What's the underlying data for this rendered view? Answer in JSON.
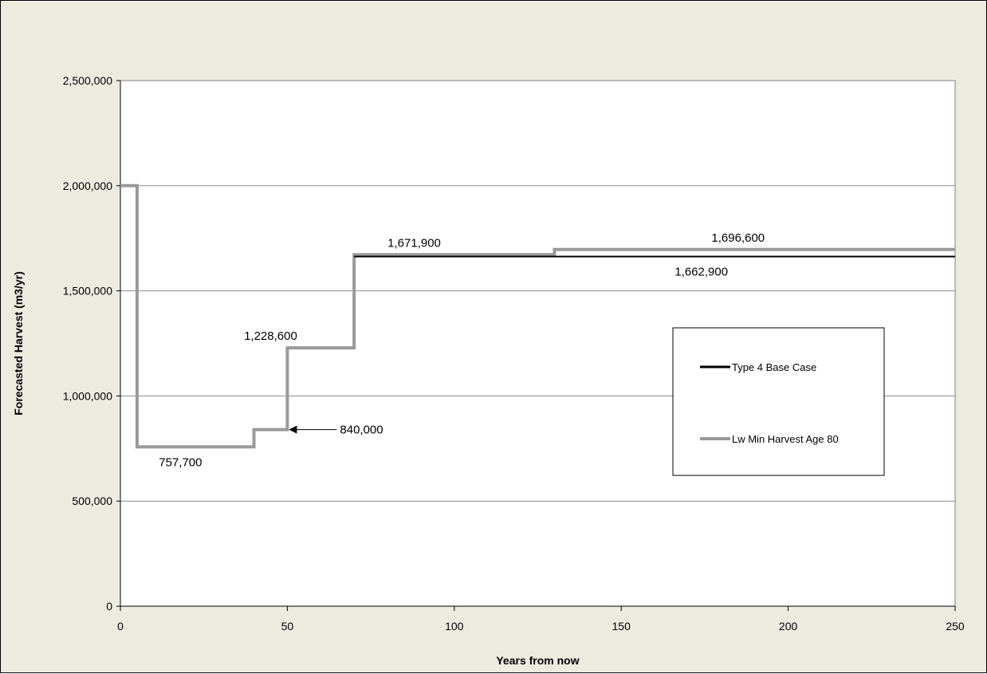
{
  "chart_data": {
    "type": "line",
    "step": true,
    "xlabel": "Years from now",
    "ylabel": "Forecasted Harvest (m3/yr)",
    "xlim": [
      0,
      250
    ],
    "ylim": [
      0,
      2500000
    ],
    "x_ticks": [
      0,
      50,
      100,
      150,
      200,
      250
    ],
    "y_ticks": [
      0,
      500000,
      1000000,
      1500000,
      2000000,
      2500000
    ],
    "x_tick_labels": [
      "0",
      "50",
      "100",
      "150",
      "200",
      "250"
    ],
    "y_tick_labels": [
      "0",
      "500,000",
      "1,000,000",
      "1,500,000",
      "2,000,000",
      "2,500,000"
    ],
    "grid": "horizontal",
    "legend_position": "right",
    "series": [
      {
        "name": "Type 4 Base Case",
        "color": "#000000",
        "x": [
          70,
          250
        ],
        "y": [
          1662900,
          1662900
        ]
      },
      {
        "name": "Lw Min Harvest Age 80",
        "color": "#9a9a9a",
        "x": [
          0,
          5,
          5,
          40,
          40,
          50,
          50,
          70,
          70,
          130,
          130,
          250
        ],
        "y": [
          2000000,
          2000000,
          757700,
          757700,
          840000,
          840000,
          1228600,
          1228600,
          1671900,
          1671900,
          1696600,
          1696600
        ]
      }
    ],
    "annotations": [
      {
        "text": "757,700",
        "x": 18,
        "y": 757700,
        "pos": "below"
      },
      {
        "text": "840,000",
        "x": 50,
        "y": 840000,
        "pos": "arrow-right"
      },
      {
        "text": "1,228,600",
        "x": 45,
        "y": 1228600,
        "pos": "above"
      },
      {
        "text": "1,671,900",
        "x": 88,
        "y": 1671900,
        "pos": "above"
      },
      {
        "text": "1,696,600",
        "x": 185,
        "y": 1696600,
        "pos": "above"
      },
      {
        "text": "1,662,900",
        "x": 174,
        "y": 1662900,
        "pos": "below"
      }
    ]
  }
}
